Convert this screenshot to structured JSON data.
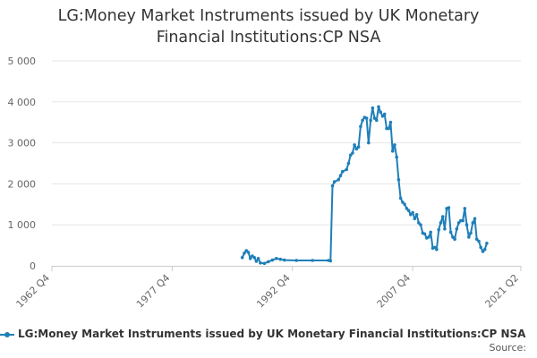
{
  "title_line1": "LG:Money Market Instruments issued by UK Monetary",
  "title_line2": "Financial Institutions:CP NSA",
  "legend_label": "LG:Money Market Instruments issued by UK Monetary Financial Institutions:CP NSA",
  "source_label": "Source:",
  "chart_data": {
    "type": "line",
    "title": "LG:Money Market Instruments issued by UK Monetary Financial Institutions:CP NSA",
    "xlabel": "",
    "ylabel": "",
    "ylim": [
      0,
      5000
    ],
    "yticks": [
      0,
      1000,
      2000,
      3000,
      4000,
      5000
    ],
    "ytick_labels": [
      "0",
      "1 000",
      "2 000",
      "3 000",
      "4 000",
      "5 000"
    ],
    "xlim": [
      "1962 Q4",
      "2021 Q2"
    ],
    "xticks": [
      "1962 Q4",
      "1977 Q4",
      "1992 Q4",
      "2007 Q4",
      "2021 Q2"
    ],
    "grid": "horizontal",
    "legend": "bottom",
    "color": "#1f7fb8",
    "series": [
      {
        "name": "LG:Money Market Instruments issued by UK Monetary Financial Institutions:CP NSA",
        "points": [
          [
            "1986 Q3",
            200
          ],
          [
            "1986 Q4",
            310
          ],
          [
            "1987 Q1",
            370
          ],
          [
            "1987 Q2",
            330
          ],
          [
            "1987 Q3",
            180
          ],
          [
            "1987 Q4",
            240
          ],
          [
            "1988 Q1",
            200
          ],
          [
            "1988 Q2",
            110
          ],
          [
            "1988 Q3",
            180
          ],
          [
            "1988 Q4",
            70
          ],
          [
            "1989 Q2",
            60
          ],
          [
            "1989 Q4",
            100
          ],
          [
            "1990 Q2",
            140
          ],
          [
            "1990 Q4",
            180
          ],
          [
            "1991 Q2",
            160
          ],
          [
            "1991 Q4",
            140
          ],
          [
            "1993 Q2",
            130
          ],
          [
            "1995 Q2",
            130
          ],
          [
            "1997 Q2",
            130
          ],
          [
            "1997 Q3",
            120
          ],
          [
            "1997 Q4",
            1950
          ],
          [
            "1998 Q1",
            2050
          ],
          [
            "1998 Q3",
            2100
          ],
          [
            "1998 Q4",
            2200
          ],
          [
            "1999 Q1",
            2300
          ],
          [
            "1999 Q3",
            2350
          ],
          [
            "1999 Q4",
            2500
          ],
          [
            "2000 Q1",
            2700
          ],
          [
            "2000 Q2",
            2750
          ],
          [
            "2000 Q3",
            2950
          ],
          [
            "2000 Q4",
            2850
          ],
          [
            "2001 Q1",
            2900
          ],
          [
            "2001 Q2",
            3400
          ],
          [
            "2001 Q3",
            3550
          ],
          [
            "2001 Q4",
            3620
          ],
          [
            "2002 Q1",
            3600
          ],
          [
            "2002 Q2",
            3000
          ],
          [
            "2002 Q3",
            3550
          ],
          [
            "2002 Q4",
            3850
          ],
          [
            "2003 Q1",
            3600
          ],
          [
            "2003 Q2",
            3550
          ],
          [
            "2003 Q3",
            3880
          ],
          [
            "2003 Q4",
            3750
          ],
          [
            "2004 Q1",
            3650
          ],
          [
            "2004 Q2",
            3700
          ],
          [
            "2004 Q3",
            3350
          ],
          [
            "2004 Q4",
            3350
          ],
          [
            "2005 Q1",
            3500
          ],
          [
            "2005 Q2",
            2800
          ],
          [
            "2005 Q3",
            2950
          ],
          [
            "2005 Q4",
            2650
          ],
          [
            "2006 Q1",
            2100
          ],
          [
            "2006 Q2",
            1650
          ],
          [
            "2006 Q3",
            1550
          ],
          [
            "2006 Q4",
            1500
          ],
          [
            "2007 Q1",
            1400
          ],
          [
            "2007 Q2",
            1350
          ],
          [
            "2007 Q3",
            1250
          ],
          [
            "2007 Q4",
            1300
          ],
          [
            "2008 Q1",
            1150
          ],
          [
            "2008 Q2",
            1250
          ],
          [
            "2008 Q3",
            1050
          ],
          [
            "2008 Q4",
            1000
          ],
          [
            "2009 Q1",
            800
          ],
          [
            "2009 Q2",
            780
          ],
          [
            "2009 Q3",
            680
          ],
          [
            "2009 Q4",
            700
          ],
          [
            "2010 Q1",
            820
          ],
          [
            "2010 Q2",
            430
          ],
          [
            "2010 Q3",
            450
          ],
          [
            "2010 Q4",
            400
          ],
          [
            "2011 Q1",
            880
          ],
          [
            "2011 Q2",
            1050
          ],
          [
            "2011 Q3",
            1200
          ],
          [
            "2011 Q4",
            900
          ],
          [
            "2012 Q1",
            1400
          ],
          [
            "2012 Q2",
            1420
          ],
          [
            "2012 Q3",
            820
          ],
          [
            "2012 Q4",
            700
          ],
          [
            "2013 Q1",
            650
          ],
          [
            "2013 Q2",
            900
          ],
          [
            "2013 Q3",
            1050
          ],
          [
            "2013 Q4",
            1100
          ],
          [
            "2014 Q1",
            1100
          ],
          [
            "2014 Q2",
            1400
          ],
          [
            "2014 Q3",
            1000
          ],
          [
            "2014 Q4",
            700
          ],
          [
            "2015 Q1",
            800
          ],
          [
            "2015 Q2",
            1050
          ],
          [
            "2015 Q3",
            1150
          ],
          [
            "2015 Q4",
            650
          ],
          [
            "2016 Q1",
            600
          ],
          [
            "2016 Q2",
            450
          ],
          [
            "2016 Q3",
            350
          ],
          [
            "2016 Q4",
            400
          ],
          [
            "2017 Q1",
            550
          ]
        ]
      }
    ]
  }
}
